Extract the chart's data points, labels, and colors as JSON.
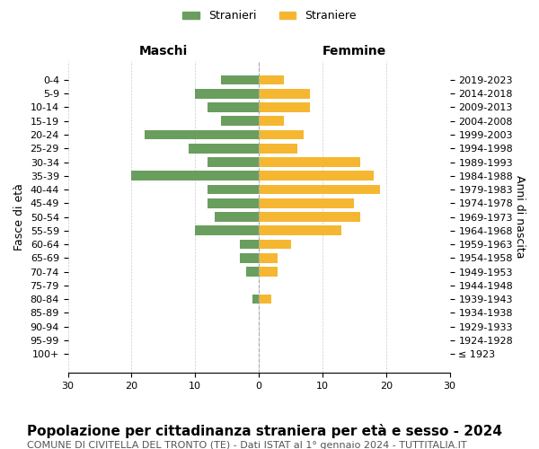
{
  "age_groups": [
    "100+",
    "95-99",
    "90-94",
    "85-89",
    "80-84",
    "75-79",
    "70-74",
    "65-69",
    "60-64",
    "55-59",
    "50-54",
    "45-49",
    "40-44",
    "35-39",
    "30-34",
    "25-29",
    "20-24",
    "15-19",
    "10-14",
    "5-9",
    "0-4"
  ],
  "birth_years": [
    "≤ 1923",
    "1924-1928",
    "1929-1933",
    "1934-1938",
    "1939-1943",
    "1944-1948",
    "1949-1953",
    "1954-1958",
    "1959-1963",
    "1964-1968",
    "1969-1973",
    "1974-1978",
    "1979-1983",
    "1984-1988",
    "1989-1993",
    "1994-1998",
    "1999-2003",
    "2004-2008",
    "2009-2013",
    "2014-2018",
    "2019-2023"
  ],
  "males": [
    0,
    0,
    0,
    0,
    1,
    0,
    2,
    3,
    3,
    10,
    7,
    8,
    8,
    20,
    8,
    11,
    18,
    6,
    8,
    10,
    6
  ],
  "females": [
    0,
    0,
    0,
    0,
    2,
    0,
    3,
    3,
    5,
    13,
    16,
    15,
    19,
    18,
    16,
    6,
    7,
    4,
    8,
    8,
    4
  ],
  "male_color": "#6a9e5e",
  "female_color": "#f5b731",
  "background_color": "#ffffff",
  "grid_color": "#cccccc",
  "title": "Popolazione per cittadinanza straniera per età e sesso - 2024",
  "subtitle": "COMUNE DI CIVITELLA DEL TRONTO (TE) - Dati ISTAT al 1° gennaio 2024 - TUTTITALIA.IT",
  "xlabel_left": "Maschi",
  "xlabel_right": "Femmine",
  "ylabel_left": "Fasce di età",
  "ylabel_right": "Anni di nascita",
  "legend_male": "Stranieri",
  "legend_female": "Straniere",
  "xlim": 30,
  "title_fontsize": 11,
  "subtitle_fontsize": 8,
  "axis_label_fontsize": 9,
  "tick_fontsize": 8
}
